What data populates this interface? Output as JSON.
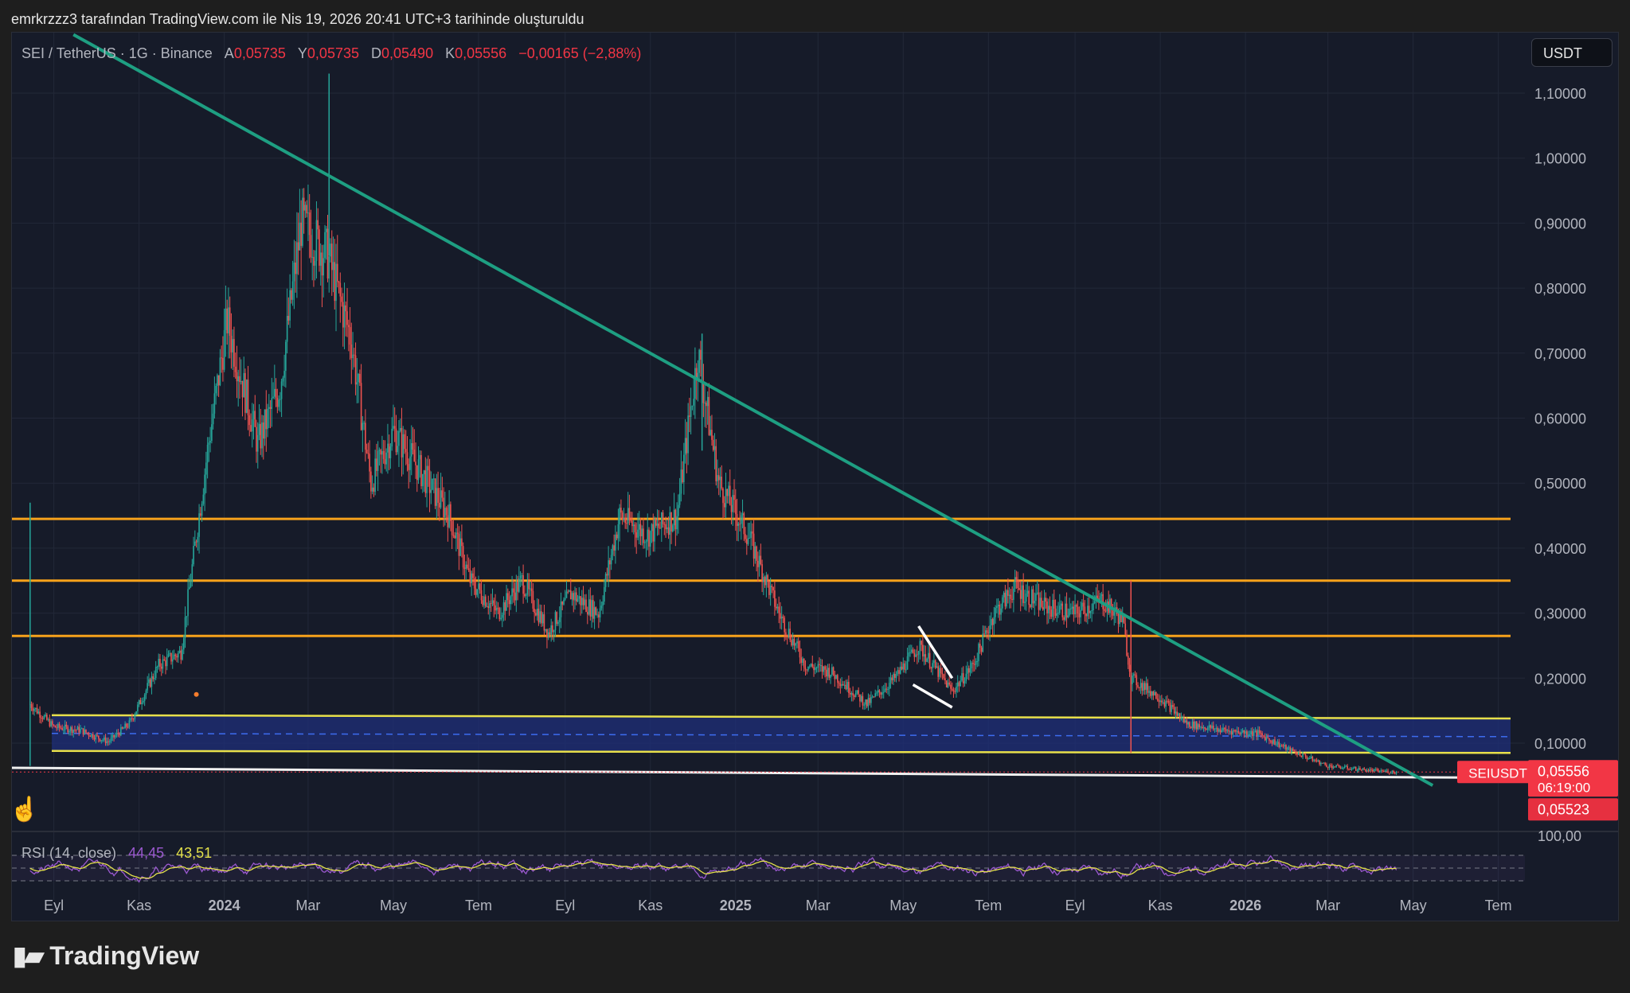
{
  "attribution": "emrkrzzz3 tarafından TradingView.com ile Nis 19, 2026 20:41 UTC+3 tarihinde oluşturuldu",
  "legend": {
    "symbol": "SEI / TetherUS · 1G · Binance",
    "open_label": "A",
    "open": "0,05735",
    "high_label": "Y",
    "high": "0,05735",
    "low_label": "D",
    "low": "0,05490",
    "close_label": "K",
    "close": "0,05556",
    "change": "−0,00165 (−2,88%)"
  },
  "unit": "USDT",
  "rsi_legend": {
    "label": "RSI (14, close)",
    "rsi": "44,45",
    "ma": "43,51"
  },
  "price_tags": {
    "symbol": "SEIUSDT",
    "last": "0,05556",
    "countdown": "06:19:00",
    "secondary": "0,05523",
    "rsi_axis_partial": "100,00"
  },
  "footer": {
    "brand": "TradingView",
    "logo_icon": "tradingview-logo-icon"
  },
  "colors": {
    "background": "#161b29",
    "bull": "#26a69a",
    "bear": "#ef5350",
    "trendline": "#1e9f82",
    "resistance": "#f7a21b",
    "support_band": "#e8e04a",
    "band_fill": "#1f2f7a",
    "rsi_line": "#9b59d0",
    "rsi_ma": "#e3e04a",
    "last_price_tag": "#f23645"
  },
  "chart_data": {
    "type": "candlestick",
    "title": "",
    "xlabel": "",
    "ylabel": "",
    "ylim": [
      0.0,
      1.15
    ],
    "y_ticks": [
      "1,10000",
      "1,00000",
      "0,90000",
      "0,80000",
      "0,70000",
      "0,60000",
      "0,50000",
      "0,40000",
      "0,30000",
      "0,20000",
      "0,10000"
    ],
    "y_tick_values": [
      1.1,
      1.0,
      0.9,
      0.8,
      0.7,
      0.6,
      0.5,
      0.4,
      0.3,
      0.2,
      0.1
    ],
    "x_ticks": [
      "Eyl",
      "Kas",
      "2024",
      "Mar",
      "May",
      "Tem",
      "Eyl",
      "Kas",
      "2025",
      "Mar",
      "May",
      "Tem",
      "Eyl",
      "Kas",
      "2026",
      "Mar",
      "May",
      "Tem"
    ],
    "x_tick_dates": [
      "2023-09-01",
      "2023-11-01",
      "2024-01-01",
      "2024-03-01",
      "2024-05-01",
      "2024-07-01",
      "2024-09-01",
      "2024-11-01",
      "2025-01-01",
      "2025-03-01",
      "2025-05-01",
      "2025-07-01",
      "2025-09-01",
      "2025-11-01",
      "2026-01-01",
      "2026-03-01",
      "2026-05-01",
      "2026-07-01"
    ],
    "bold_ticks": [
      "2024",
      "2025",
      "2026"
    ],
    "x_range": [
      "2023-08-02",
      "2026-07-20"
    ],
    "grid": true,
    "series": [
      {
        "name": "SEIUSDT",
        "approx_closes": [
          {
            "date": "2023-08-15",
            "value": 0.16
          },
          {
            "date": "2023-09-01",
            "value": 0.125
          },
          {
            "date": "2023-09-20",
            "value": 0.12
          },
          {
            "date": "2023-10-10",
            "value": 0.102
          },
          {
            "date": "2023-10-25",
            "value": 0.13
          },
          {
            "date": "2023-11-15",
            "value": 0.22
          },
          {
            "date": "2023-12-01",
            "value": 0.24
          },
          {
            "date": "2023-12-20",
            "value": 0.55
          },
          {
            "date": "2024-01-03",
            "value": 0.75
          },
          {
            "date": "2024-01-25",
            "value": 0.56
          },
          {
            "date": "2024-02-10",
            "value": 0.65
          },
          {
            "date": "2024-02-25",
            "value": 0.9
          },
          {
            "date": "2024-03-15",
            "value": 0.85
          },
          {
            "date": "2024-04-01",
            "value": 0.72
          },
          {
            "date": "2024-04-15",
            "value": 0.5
          },
          {
            "date": "2024-05-01",
            "value": 0.58
          },
          {
            "date": "2024-05-20",
            "value": 0.52
          },
          {
            "date": "2024-06-10",
            "value": 0.45
          },
          {
            "date": "2024-06-25",
            "value": 0.35
          },
          {
            "date": "2024-07-15",
            "value": 0.3
          },
          {
            "date": "2024-08-01",
            "value": 0.35
          },
          {
            "date": "2024-08-20",
            "value": 0.27
          },
          {
            "date": "2024-09-05",
            "value": 0.33
          },
          {
            "date": "2024-09-25",
            "value": 0.3
          },
          {
            "date": "2024-10-10",
            "value": 0.45
          },
          {
            "date": "2024-10-30",
            "value": 0.42
          },
          {
            "date": "2024-11-20",
            "value": 0.45
          },
          {
            "date": "2024-12-05",
            "value": 0.7
          },
          {
            "date": "2024-12-20",
            "value": 0.5
          },
          {
            "date": "2025-01-10",
            "value": 0.42
          },
          {
            "date": "2025-02-01",
            "value": 0.3
          },
          {
            "date": "2025-02-20",
            "value": 0.22
          },
          {
            "date": "2025-03-10",
            "value": 0.21
          },
          {
            "date": "2025-04-05",
            "value": 0.16
          },
          {
            "date": "2025-04-25",
            "value": 0.2
          },
          {
            "date": "2025-05-12",
            "value": 0.25
          },
          {
            "date": "2025-06-05",
            "value": 0.18
          },
          {
            "date": "2025-06-20",
            "value": 0.22
          },
          {
            "date": "2025-07-05",
            "value": 0.3
          },
          {
            "date": "2025-07-20",
            "value": 0.34
          },
          {
            "date": "2025-08-10",
            "value": 0.31
          },
          {
            "date": "2025-09-01",
            "value": 0.3
          },
          {
            "date": "2025-09-20",
            "value": 0.32
          },
          {
            "date": "2025-10-05",
            "value": 0.29
          },
          {
            "date": "2025-10-11",
            "value": 0.2
          },
          {
            "date": "2025-11-01",
            "value": 0.17
          },
          {
            "date": "2025-11-20",
            "value": 0.13
          },
          {
            "date": "2025-12-15",
            "value": 0.12
          },
          {
            "date": "2026-01-10",
            "value": 0.115
          },
          {
            "date": "2026-02-01",
            "value": 0.09
          },
          {
            "date": "2026-03-01",
            "value": 0.065
          },
          {
            "date": "2026-04-01",
            "value": 0.058
          },
          {
            "date": "2026-04-19",
            "value": 0.05556
          }
        ]
      }
    ],
    "last_price": 0.05556,
    "horizontal_levels": [
      {
        "kind": "resistance",
        "value": 0.445
      },
      {
        "kind": "resistance",
        "value": 0.35
      },
      {
        "kind": "resistance",
        "value": 0.265
      }
    ],
    "support_band": {
      "upper": [
        0.143,
        0.138
      ],
      "lower": [
        0.088,
        0.085
      ],
      "mid": [
        0.115,
        0.11
      ]
    },
    "baseline_level": 0.055,
    "trendline": {
      "from": {
        "date": "2023-09-15",
        "value": 1.19
      },
      "to": {
        "date": "2026-05-15",
        "value": 0.035
      }
    },
    "wedge_lines": [
      {
        "from": {
          "date": "2025-05-12",
          "value": 0.28
        },
        "to": {
          "date": "2025-06-05",
          "value": 0.2
        }
      },
      {
        "from": {
          "date": "2025-05-08",
          "value": 0.19
        },
        "to": {
          "date": "2025-06-05",
          "value": 0.155
        }
      }
    ],
    "rsi": {
      "period": 14,
      "ylim": [
        0,
        100
      ],
      "levels": [
        70,
        50,
        30
      ],
      "last": 44.45,
      "ma_last": 43.51
    }
  }
}
